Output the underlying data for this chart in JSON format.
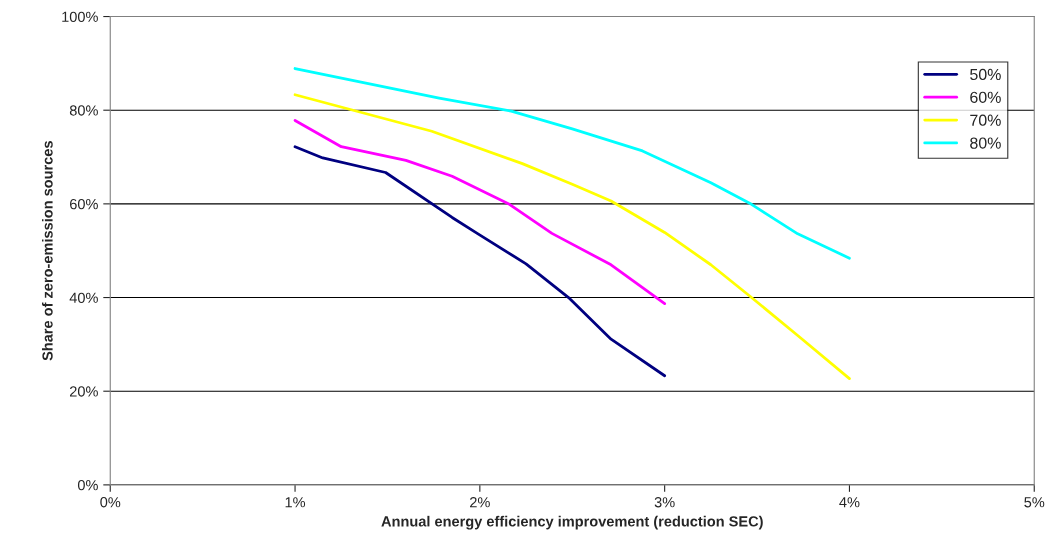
{
  "chart_data": {
    "type": "line",
    "xlabel": "Annual energy efficiency improvement (reduction SEC)",
    "ylabel": "Share of zero-emission sources",
    "xlim": [
      0,
      5
    ],
    "xticks": [
      {
        "value": 0,
        "label": "0%"
      },
      {
        "value": 1,
        "label": "1%"
      },
      {
        "value": 2,
        "label": "2%"
      },
      {
        "value": 3,
        "label": "3%"
      },
      {
        "value": 4,
        "label": "4%"
      },
      {
        "value": 5,
        "label": "5%"
      }
    ],
    "ylim": [
      0,
      100
    ],
    "yticks": [
      {
        "value": 0,
        "label": "0%"
      },
      {
        "value": 20,
        "label": "20%"
      },
      {
        "value": 40,
        "label": "40%"
      },
      {
        "value": 60,
        "label": "60%"
      },
      {
        "value": 80,
        "label": "80%"
      },
      {
        "value": 100,
        "label": "100%"
      }
    ],
    "grid": "y",
    "legend": "top right",
    "marker": "none",
    "series": [
      {
        "name": "50%",
        "color": "#000080",
        "x": [
          1,
          1.15,
          1.49,
          1.85,
          1.99,
          2.25,
          2.48,
          2.71,
          3
        ],
        "values": [
          72.2,
          69.8,
          66.7,
          57.1,
          53.6,
          47.2,
          40,
          31.1,
          23.3
        ]
      },
      {
        "name": "60%",
        "color": "#ff00ff",
        "x": [
          1,
          1.25,
          1.6,
          1.85,
          2.16,
          2.39,
          2.71,
          3
        ],
        "values": [
          77.8,
          72.2,
          69.3,
          65.9,
          59.9,
          53.7,
          47,
          38.7
        ]
      },
      {
        "name": "70%",
        "color": "#ffff00",
        "x": [
          1,
          1.74,
          2.23,
          2.5,
          2.71,
          3,
          3.25,
          3.47,
          3.72,
          4
        ],
        "values": [
          83.3,
          75.5,
          68.6,
          64.2,
          60.6,
          53.9,
          47,
          40,
          31.9,
          22.7
        ]
      },
      {
        "name": "80%",
        "color": "#00ffff",
        "x": [
          1,
          1.78,
          2.17,
          2.5,
          2.88,
          3.25,
          3.47,
          3.72,
          4
        ],
        "values": [
          88.9,
          82.6,
          79.8,
          76,
          71.3,
          64.5,
          59.9,
          53.6,
          48.4
        ]
      }
    ]
  }
}
